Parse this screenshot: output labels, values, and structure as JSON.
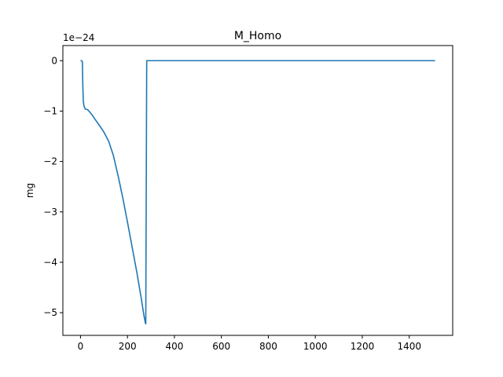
{
  "chart_data": {
    "type": "line",
    "title": "M_Homo",
    "xlabel": "",
    "ylabel": "mg",
    "offset_text": "1e−24",
    "xlim": [
      -75,
      1585
    ],
    "ylim": [
      -5.45,
      0.3
    ],
    "xticks": [
      0,
      200,
      400,
      600,
      800,
      1000,
      1200,
      1400
    ],
    "xtick_labels": [
      "0",
      "200",
      "400",
      "600",
      "800",
      "1000",
      "1200",
      "1400"
    ],
    "yticks": [
      0,
      -1,
      -2,
      -3,
      -4,
      -5
    ],
    "ytick_labels": [
      "0",
      "−1",
      "−2",
      "−3",
      "−4",
      "−5"
    ],
    "grid": false,
    "series": [
      {
        "color": "#1f77b4",
        "x": [
          0,
          5,
          8,
          10,
          12,
          15,
          20,
          30,
          40,
          50,
          60,
          80,
          100,
          120,
          140,
          160,
          180,
          200,
          220,
          240,
          260,
          270,
          276,
          278,
          282,
          290,
          400,
          600,
          800,
          1000,
          1200,
          1400,
          1510
        ],
        "y": [
          0,
          0,
          -0.02,
          -0.5,
          -0.8,
          -0.9,
          -0.96,
          -0.97,
          -1.02,
          -1.08,
          -1.15,
          -1.28,
          -1.42,
          -1.6,
          -1.88,
          -2.28,
          -2.72,
          -3.2,
          -3.7,
          -4.2,
          -4.75,
          -5.05,
          -5.2,
          -5.22,
          0,
          0,
          0,
          0,
          0,
          0,
          0,
          0,
          0
        ]
      }
    ]
  }
}
